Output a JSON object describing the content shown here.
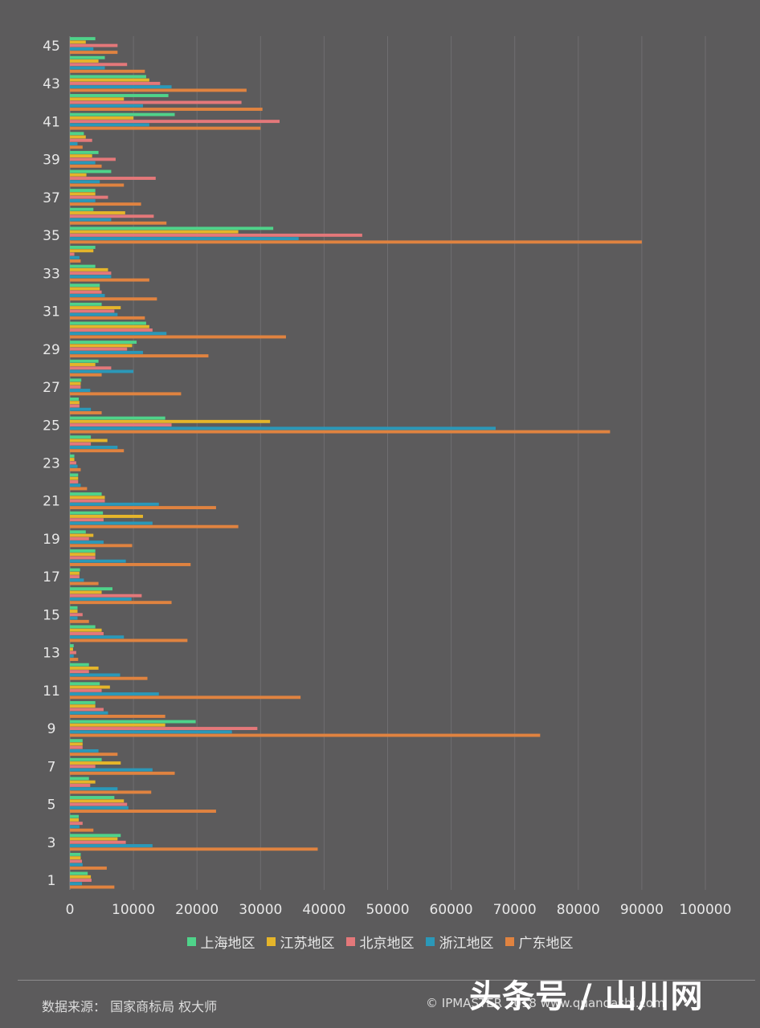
{
  "chart_data": {
    "type": "bar",
    "orientation": "horizontal",
    "categories": [
      1,
      2,
      3,
      4,
      5,
      6,
      7,
      8,
      9,
      10,
      11,
      12,
      13,
      14,
      15,
      16,
      17,
      18,
      19,
      20,
      21,
      22,
      23,
      24,
      25,
      26,
      27,
      28,
      29,
      30,
      31,
      32,
      33,
      34,
      35,
      36,
      37,
      38,
      39,
      40,
      41,
      42,
      43,
      44,
      45
    ],
    "y_tick_labels": [
      "1",
      "3",
      "5",
      "7",
      "9",
      "11",
      "13",
      "15",
      "17",
      "19",
      "21",
      "23",
      "25",
      "27",
      "29",
      "31",
      "33",
      "35",
      "37",
      "39",
      "41",
      "43",
      "45"
    ],
    "x_tick_labels": [
      "0",
      "10000",
      "20000",
      "30000",
      "40000",
      "50000",
      "60000",
      "70000",
      "80000",
      "90000",
      "100000"
    ],
    "xlim": [
      0,
      100000
    ],
    "grid": "vertical",
    "legend_position": "bottom",
    "series": [
      {
        "name": "上海地区",
        "color": "#4fd38a",
        "values": [
          2800,
          1700,
          8000,
          1400,
          7000,
          3000,
          5000,
          2000,
          19800,
          4000,
          4700,
          3000,
          600,
          4000,
          1200,
          6700,
          1600,
          4000,
          2500,
          5200,
          5000,
          1300,
          700,
          3300,
          15000,
          1400,
          1800,
          4500,
          10500,
          12000,
          5000,
          4700,
          4000,
          4000,
          32000,
          3700,
          4000,
          6500,
          4500,
          2200,
          16500,
          15500,
          12000,
          5500,
          4000
        ]
      },
      {
        "name": "江苏地区",
        "color": "#e5b52a",
        "values": [
          3300,
          1700,
          7500,
          1400,
          8500,
          4000,
          8000,
          2000,
          15000,
          4000,
          6300,
          4500,
          500,
          5000,
          1200,
          5000,
          1500,
          4000,
          3700,
          11500,
          5500,
          1300,
          700,
          5900,
          31500,
          1500,
          1700,
          4000,
          9800,
          12500,
          8000,
          4700,
          6000,
          3700,
          26500,
          8700,
          4000,
          2600,
          3500,
          2500,
          10000,
          8500,
          12500,
          4500,
          2500
        ]
      },
      {
        "name": "北京地区",
        "color": "#e4787a",
        "values": [
          3400,
          1900,
          8800,
          2000,
          9000,
          3200,
          4000,
          2000,
          29500,
          5300,
          5000,
          3000,
          1000,
          5300,
          2000,
          11300,
          1500,
          4000,
          3000,
          5300,
          5500,
          1300,
          1000,
          3300,
          16000,
          1500,
          1700,
          6500,
          9000,
          13000,
          7000,
          5000,
          6500,
          700,
          46000,
          13200,
          6000,
          13500,
          7200,
          3500,
          33000,
          27000,
          14200,
          9000,
          7500
        ]
      },
      {
        "name": "浙江地区",
        "color": "#2b98b8",
        "values": [
          1900,
          2000,
          13000,
          1500,
          9200,
          7500,
          13000,
          4500,
          25500,
          6000,
          14000,
          7900,
          600,
          8500,
          1200,
          9700,
          2200,
          8800,
          5300,
          13000,
          14000,
          1700,
          1200,
          7500,
          67000,
          3300,
          3200,
          10000,
          11500,
          15200,
          7500,
          5500,
          6500,
          1500,
          36000,
          6500,
          4000,
          4700,
          4000,
          1200,
          12500,
          11500,
          16000,
          5500,
          3700
        ]
      },
      {
        "name": "广东地区",
        "color": "#e08340",
        "values": [
          7000,
          5800,
          39000,
          3700,
          23000,
          12800,
          16500,
          7500,
          74000,
          15000,
          36300,
          12200,
          1300,
          18500,
          3000,
          16000,
          4500,
          19000,
          9800,
          26500,
          23000,
          2700,
          1700,
          8500,
          85000,
          5000,
          17500,
          5000,
          21800,
          34000,
          11800,
          13700,
          12500,
          1700,
          90000,
          15200,
          11200,
          8500,
          5000,
          2000,
          30000,
          30300,
          27800,
          11800,
          7500
        ]
      }
    ]
  },
  "legend": {
    "items": [
      {
        "label": "上海地区",
        "color": "#4fd38a"
      },
      {
        "label": "江苏地区",
        "color": "#e5b52a"
      },
      {
        "label": "北京地区",
        "color": "#e4787a"
      },
      {
        "label": "浙江地区",
        "color": "#2b98b8"
      },
      {
        "label": "广东地区",
        "color": "#e08340"
      }
    ]
  },
  "footer": {
    "source": "数据来源： 国家商标局  权大师",
    "copyright": "© IPMASTER 2018 www.quandashi.com",
    "watermark": "头条号 / 山川网"
  }
}
